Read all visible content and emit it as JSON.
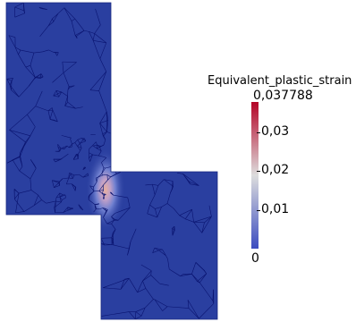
{
  "colorbar": {
    "title": "Equivalent_plastic_strain",
    "max_label": "0,037788",
    "min_label": "0",
    "ticks": [
      {
        "label": "0,03",
        "value": 0.03
      },
      {
        "label": "0,02",
        "value": 0.02
      },
      {
        "label": "0,01",
        "value": 0.01
      }
    ],
    "range": [
      0,
      0.037788
    ],
    "colors": {
      "low": "#3b4cc0",
      "mid": "#dddddd",
      "high": "#b40426"
    }
  },
  "mesh": {
    "fill_color": "#2a3fa0",
    "edge_color": "#0a1470",
    "hotspot_value": 0.037788
  }
}
